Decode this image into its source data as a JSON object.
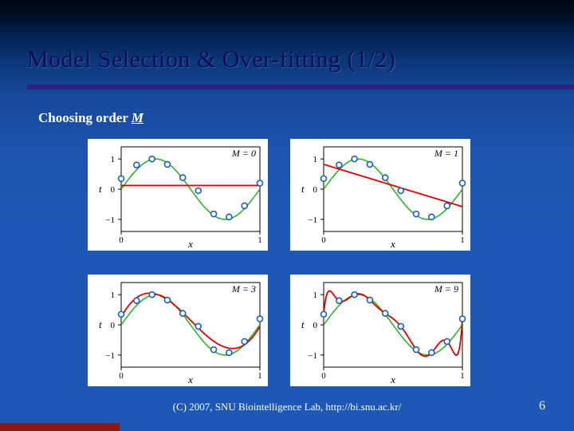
{
  "slide": {
    "title": "Model Selection & Over-fitting (1/2)",
    "subtitle_prefix": "Choosing order ",
    "subtitle_var": "M",
    "footer": "(C) 2007, SNU Biointelligence Lab, http://bi.snu.ac.kr/",
    "page": "6"
  },
  "chart_common": {
    "background_color": "#ffffff",
    "axis_color": "#000000",
    "true_curve_color": "#2ab52a",
    "fit_curve_color": "#e00000",
    "point_stroke": "#1a5fbf",
    "point_fill": "#ffffff",
    "point_radius": 3.5,
    "xlabel": "x",
    "ylabel": "t",
    "order_label_prefix": "M = ",
    "xlim": [
      0,
      1
    ],
    "ylim": [
      -1.4,
      1.4
    ],
    "xticks": [
      {
        "v": 0,
        "label": "0"
      },
      {
        "v": 1,
        "label": "1"
      }
    ],
    "yticks": [
      {
        "v": -1,
        "label": "−1"
      },
      {
        "v": 0,
        "label": "0"
      },
      {
        "v": 1,
        "label": "1"
      }
    ],
    "axis_label_fontsize": 13,
    "tick_fontsize": 11,
    "order_fontsize": 12,
    "line_width_true": 1.6,
    "line_width_fit": 1.8
  },
  "datapoints": [
    {
      "x": 0.0,
      "t": 0.35
    },
    {
      "x": 0.111,
      "t": 0.8
    },
    {
      "x": 0.222,
      "t": 1.0
    },
    {
      "x": 0.333,
      "t": 0.82
    },
    {
      "x": 0.444,
      "t": 0.38
    },
    {
      "x": 0.556,
      "t": -0.05
    },
    {
      "x": 0.667,
      "t": -0.82
    },
    {
      "x": 0.778,
      "t": -0.92
    },
    {
      "x": 0.889,
      "t": -0.55
    },
    {
      "x": 1.0,
      "t": 0.2
    }
  ],
  "panels": [
    {
      "order": 0,
      "order_text": "M = 0",
      "fit": {
        "type": "poly",
        "coeffs": [
          0.12
        ]
      }
    },
    {
      "order": 1,
      "order_text": "M = 1",
      "fit": {
        "type": "poly",
        "coeffs": [
          0.82,
          -1.4
        ]
      }
    },
    {
      "order": 3,
      "order_text": "M = 3",
      "fit": {
        "type": "poly",
        "coeffs": [
          0.25,
          8.5,
          -26.0,
          17.2
        ]
      }
    },
    {
      "order": 9,
      "order_text": "M = 9",
      "fit": {
        "type": "interp9"
      }
    }
  ]
}
